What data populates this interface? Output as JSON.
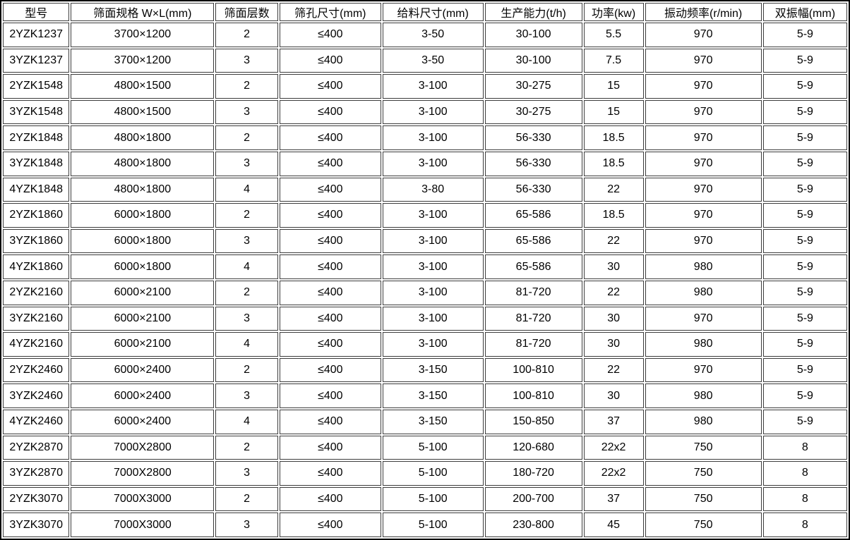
{
  "chart_data": {
    "type": "table",
    "columns": [
      "型号",
      "筛面规格 W×L(mm)",
      "筛面层数",
      "筛孔尺寸(mm)",
      "给料尺寸(mm)",
      "生产能力(t/h)",
      "功率(kw)",
      "振动频率(r/min)",
      "双振幅(mm)"
    ],
    "column_widths_percent": [
      8.0,
      17.2,
      7.5,
      12.2,
      12.1,
      11.7,
      7.2,
      14.0,
      10.1
    ],
    "rows": [
      [
        "2YZK1237",
        "3700×1200",
        "2",
        "≤400",
        "3-50",
        "30-100",
        "5.5",
        "970",
        "5-9"
      ],
      [
        "3YZK1237",
        "3700×1200",
        "3",
        "≤400",
        "3-50",
        "30-100",
        "7.5",
        "970",
        "5-9"
      ],
      [
        "2YZK1548",
        "4800×1500",
        "2",
        "≤400",
        "3-100",
        "30-275",
        "15",
        "970",
        "5-9"
      ],
      [
        "3YZK1548",
        "4800×1500",
        "3",
        "≤400",
        "3-100",
        "30-275",
        "15",
        "970",
        "5-9"
      ],
      [
        "2YZK1848",
        "4800×1800",
        "2",
        "≤400",
        "3-100",
        "56-330",
        "18.5",
        "970",
        "5-9"
      ],
      [
        "3YZK1848",
        "4800×1800",
        "3",
        "≤400",
        "3-100",
        "56-330",
        "18.5",
        "970",
        "5-9"
      ],
      [
        "4YZK1848",
        "4800×1800",
        "4",
        "≤400",
        "3-80",
        "56-330",
        "22",
        "970",
        "5-9"
      ],
      [
        "2YZK1860",
        "6000×1800",
        "2",
        "≤400",
        "3-100",
        "65-586",
        "18.5",
        "970",
        "5-9"
      ],
      [
        "3YZK1860",
        "6000×1800",
        "3",
        "≤400",
        "3-100",
        "65-586",
        "22",
        "970",
        "5-9"
      ],
      [
        "4YZK1860",
        "6000×1800",
        "4",
        "≤400",
        "3-100",
        "65-586",
        "30",
        "980",
        "5-9"
      ],
      [
        "2YZK2160",
        "6000×2100",
        "2",
        "≤400",
        "3-100",
        "81-720",
        "22",
        "980",
        "5-9"
      ],
      [
        "3YZK2160",
        "6000×2100",
        "3",
        "≤400",
        "3-100",
        "81-720",
        "30",
        "970",
        "5-9"
      ],
      [
        "4YZK2160",
        "6000×2100",
        "4",
        "≤400",
        "3-100",
        "81-720",
        "30",
        "980",
        "5-9"
      ],
      [
        "2YZK2460",
        "6000×2400",
        "2",
        "≤400",
        "3-150",
        "100-810",
        "22",
        "970",
        "5-9"
      ],
      [
        "3YZK2460",
        "6000×2400",
        "3",
        "≤400",
        "3-150",
        "100-810",
        "30",
        "980",
        "5-9"
      ],
      [
        "4YZK2460",
        "6000×2400",
        "4",
        "≤400",
        "3-150",
        "150-850",
        "37",
        "980",
        "5-9"
      ],
      [
        "2YZK2870",
        "7000X2800",
        "2",
        "≤400",
        "5-100",
        "120-680",
        "22x2",
        "750",
        "8"
      ],
      [
        "3YZK2870",
        "7000X2800",
        "3",
        "≤400",
        "5-100",
        "180-720",
        "22x2",
        "750",
        "8"
      ],
      [
        "2YZK3070",
        "7000X3000",
        "2",
        "≤400",
        "5-100",
        "200-700",
        "37",
        "750",
        "8"
      ],
      [
        "3YZK3070",
        "7000X3000",
        "3",
        "≤400",
        "5-100",
        "230-800",
        "45",
        "750",
        "8"
      ]
    ],
    "layout": {
      "grid": "double-line cell borders",
      "header_row": true
    }
  },
  "colors": {
    "background": "#ffffff",
    "text": "#000000",
    "outer_border": "#000000",
    "cell_border": "#3c3c3c"
  }
}
